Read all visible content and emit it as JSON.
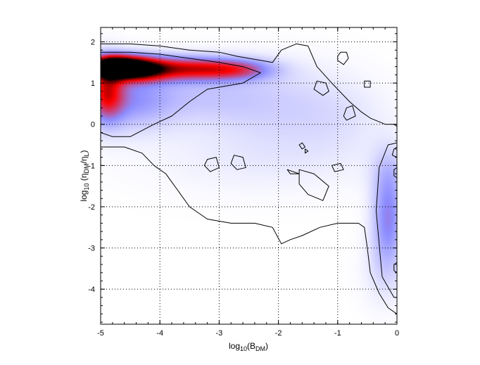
{
  "chart_data": {
    "type": "heatmap",
    "title": "",
    "xlabel": {
      "base": "log",
      "sub": "10",
      "open": "(B",
      "sub2": "DM",
      "close": ")"
    },
    "ylabel": {
      "base": "log",
      "sub": "10",
      "open": " (η",
      "sub2": "DM",
      "mid": "/η",
      "sub3": "L",
      "close": ")"
    },
    "xlim": [
      -5,
      0
    ],
    "ylim": [
      -4.85,
      2.35
    ],
    "x_ticks": [
      -5,
      -4,
      -3,
      -2,
      -1,
      0
    ],
    "x_tick_labels": [
      "-5",
      "-4",
      "-3",
      "-2",
      "-1",
      "0"
    ],
    "y_ticks": [
      -4,
      -3,
      -2,
      -1,
      0,
      1,
      2
    ],
    "y_tick_labels": [
      "-4",
      "-3",
      "-2",
      "-1",
      "0",
      "1",
      "2"
    ],
    "grid": true,
    "colormap": [
      "#ffffff",
      "#8c8cff",
      "#ff0000",
      "#000000"
    ],
    "density_components": [
      {
        "x": -4.8,
        "y": 1.4,
        "sx": 0.3,
        "sy": 0.18,
        "w": 1.05
      },
      {
        "x": -4.4,
        "y": 1.35,
        "sx": 0.35,
        "sy": 0.2,
        "w": 0.85
      },
      {
        "x": -3.6,
        "y": 1.35,
        "sx": 0.55,
        "sy": 0.2,
        "w": 0.6
      },
      {
        "x": -2.7,
        "y": 1.33,
        "sx": 0.45,
        "sy": 0.18,
        "w": 0.42
      },
      {
        "x": -4.9,
        "y": 0.8,
        "sx": 0.2,
        "sy": 0.5,
        "w": 0.55
      },
      {
        "x": -4.5,
        "y": 0.6,
        "sx": 0.5,
        "sy": 0.5,
        "w": 0.28
      },
      {
        "x": -3.3,
        "y": 0.7,
        "sx": 0.8,
        "sy": 0.5,
        "w": 0.14
      },
      {
        "x": -2.0,
        "y": 0.5,
        "sx": 0.8,
        "sy": 0.7,
        "w": 0.1
      },
      {
        "x": -1.0,
        "y": 0.2,
        "sx": 0.6,
        "sy": 0.6,
        "w": 0.06
      },
      {
        "x": -2.2,
        "y": -0.8,
        "sx": 1.4,
        "sy": 0.6,
        "w": 0.06
      },
      {
        "x": -0.15,
        "y": -2.3,
        "sx": 0.18,
        "sy": 0.7,
        "w": 0.35
      },
      {
        "x": -0.15,
        "y": -1.2,
        "sx": 0.2,
        "sy": 0.5,
        "w": 0.14
      },
      {
        "x": -0.2,
        "y": -3.5,
        "sx": 0.25,
        "sy": 0.6,
        "w": 0.1
      }
    ],
    "contours": [
      {
        "name": "outer",
        "points": [
          [
            -5,
            1.95
          ],
          [
            -4.5,
            1.95
          ],
          [
            -4,
            1.9
          ],
          [
            -3.5,
            1.8
          ],
          [
            -3,
            1.75
          ],
          [
            -2.7,
            1.65
          ],
          [
            -2.1,
            1.5
          ],
          [
            -1.95,
            1.8
          ],
          [
            -1.7,
            1.95
          ],
          [
            -1.5,
            1.9
          ],
          [
            -1.35,
            1.4
          ],
          [
            -1.1,
            1.0
          ],
          [
            -0.8,
            0.55
          ],
          [
            -0.6,
            0.3
          ],
          [
            -0.45,
            0.15
          ],
          [
            -0.2,
            0.0
          ],
          [
            -0.05,
            0.0
          ],
          [
            0,
            -0.05
          ],
          [
            0,
            -4.6
          ],
          [
            -0.15,
            -4.45
          ],
          [
            -0.3,
            -4.1
          ],
          [
            -0.45,
            -3.6
          ],
          [
            -0.5,
            -3.0
          ],
          [
            -0.55,
            -2.5
          ],
          [
            -0.65,
            -2.4
          ],
          [
            -1.0,
            -2.4
          ],
          [
            -1.3,
            -2.5
          ],
          [
            -1.6,
            -2.7
          ],
          [
            -1.8,
            -2.8
          ],
          [
            -1.95,
            -2.9
          ],
          [
            -2.1,
            -2.5
          ],
          [
            -2.4,
            -2.4
          ],
          [
            -2.8,
            -2.4
          ],
          [
            -3.2,
            -2.3
          ],
          [
            -3.5,
            -2.0
          ],
          [
            -3.7,
            -1.6
          ],
          [
            -3.9,
            -1.2
          ],
          [
            -4.1,
            -1.0
          ],
          [
            -4.3,
            -0.7
          ],
          [
            -4.6,
            -0.55
          ],
          [
            -5,
            -0.55
          ]
        ]
      },
      {
        "name": "inner",
        "points": [
          [
            -5,
            1.75
          ],
          [
            -4.5,
            1.75
          ],
          [
            -4,
            1.7
          ],
          [
            -3.5,
            1.6
          ],
          [
            -3,
            1.5
          ],
          [
            -2.6,
            1.4
          ],
          [
            -2.3,
            1.25
          ],
          [
            -2.6,
            1.0
          ],
          [
            -3.2,
            0.85
          ],
          [
            -3.5,
            0.55
          ],
          [
            -3.8,
            0.2
          ],
          [
            -4.1,
            0.0
          ],
          [
            -4.5,
            -0.3
          ],
          [
            -4.8,
            -0.3
          ],
          [
            -5,
            -0.2
          ]
        ]
      },
      {
        "name": "right-branch",
        "points": [
          [
            0,
            -0.45
          ],
          [
            -0.15,
            -0.5
          ],
          [
            -0.3,
            -1.05
          ],
          [
            -0.35,
            -2.1
          ],
          [
            -0.3,
            -2.9
          ],
          [
            -0.25,
            -3.7
          ],
          [
            -0.05,
            -4.2
          ],
          [
            0,
            -4.2
          ]
        ]
      },
      {
        "name": "island-1",
        "points": [
          [
            -0.95,
            1.75
          ],
          [
            -0.85,
            1.75
          ],
          [
            -0.82,
            1.6
          ],
          [
            -0.9,
            1.45
          ],
          [
            -1.0,
            1.55
          ],
          [
            -1.0,
            1.65
          ]
        ]
      },
      {
        "name": "island-2",
        "points": [
          [
            -1.35,
            1.05
          ],
          [
            -1.2,
            1.0
          ],
          [
            -1.15,
            0.8
          ],
          [
            -1.25,
            0.7
          ],
          [
            -1.4,
            0.85
          ]
        ]
      },
      {
        "name": "island-3",
        "points": [
          [
            -0.55,
            1.05
          ],
          [
            -0.45,
            1.05
          ],
          [
            -0.45,
            0.9
          ],
          [
            -0.55,
            0.9
          ]
        ]
      },
      {
        "name": "island-4",
        "points": [
          [
            -0.85,
            0.4
          ],
          [
            -0.75,
            0.45
          ],
          [
            -0.7,
            0.2
          ],
          [
            -0.85,
            0.1
          ],
          [
            -0.9,
            0.2
          ]
        ]
      },
      {
        "name": "island-5",
        "points": [
          [
            -3.2,
            -0.85
          ],
          [
            -3.05,
            -0.8
          ],
          [
            -3.0,
            -1.05
          ],
          [
            -3.15,
            -1.15
          ],
          [
            -3.25,
            -1.0
          ]
        ]
      },
      {
        "name": "island-6",
        "points": [
          [
            -2.75,
            -0.75
          ],
          [
            -2.6,
            -0.8
          ],
          [
            -2.55,
            -1.05
          ],
          [
            -2.7,
            -1.1
          ],
          [
            -2.8,
            -0.95
          ]
        ]
      },
      {
        "name": "island-7",
        "points": [
          [
            -1.65,
            -1.1
          ],
          [
            -1.4,
            -1.2
          ],
          [
            -1.15,
            -1.5
          ],
          [
            -1.25,
            -1.85
          ],
          [
            -1.5,
            -1.7
          ],
          [
            -1.65,
            -1.45
          ]
        ]
      },
      {
        "name": "island-8",
        "points": [
          [
            -1.85,
            -1.1
          ],
          [
            -1.65,
            -1.2
          ],
          [
            -1.8,
            -1.2
          ]
        ]
      },
      {
        "name": "island-9",
        "points": [
          [
            -1.1,
            -1.0
          ],
          [
            -0.95,
            -0.95
          ],
          [
            -0.9,
            -1.1
          ],
          [
            -1.05,
            -1.15
          ]
        ]
      },
      {
        "name": "island-10",
        "points": [
          [
            -1.6,
            -0.45
          ],
          [
            -1.55,
            -0.55
          ],
          [
            -1.6,
            -0.6
          ],
          [
            -1.65,
            -0.5
          ]
        ]
      },
      {
        "name": "island-11",
        "points": [
          [
            -1.55,
            -0.6
          ],
          [
            -1.5,
            -0.65
          ],
          [
            -1.55,
            -0.7
          ]
        ]
      },
      {
        "name": "island-12",
        "points": [
          [
            -0.05,
            -0.6
          ],
          [
            0,
            -0.55
          ],
          [
            0,
            -0.8
          ],
          [
            -0.08,
            -0.75
          ]
        ]
      },
      {
        "name": "island-13",
        "points": [
          [
            -0.05,
            -1.1
          ],
          [
            0,
            -1.05
          ],
          [
            0,
            -1.3
          ],
          [
            -0.05,
            -1.25
          ]
        ]
      },
      {
        "name": "island-14",
        "points": [
          [
            -0.05,
            -3.4
          ],
          [
            0,
            -3.35
          ],
          [
            0,
            -3.6
          ],
          [
            -0.05,
            -3.55
          ]
        ]
      }
    ]
  }
}
